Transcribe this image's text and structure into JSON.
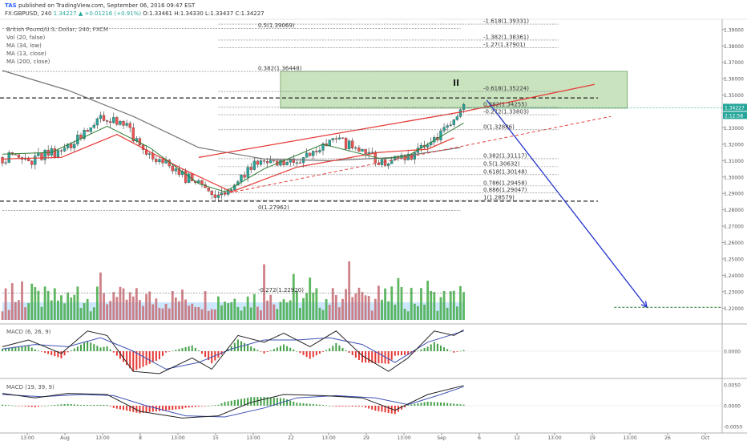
{
  "header": {
    "author": "TAS",
    "published": "published on TradingView.com, September 06, 2016 09:47 EST",
    "symbol": "FX:GBPUSD, 240",
    "last": "1.34227",
    "change": "+0.01216 (+0.91%)",
    "ohlc": "O:1.33461 H:1.34330 L:1.33437 C:1.34227"
  },
  "indicators": {
    "series_title": "British Pound/U.S. Dollar, 240, FXCM",
    "items": [
      "Vol (20, false)",
      "MA (34, low)",
      "MA (13, close)",
      "MA (200, close)"
    ],
    "macd1": "MACD (6, 26, 9)",
    "macd2": "MACD (19, 39, 9)"
  },
  "annotations": {
    "wave_label": "II",
    "price_tag": "1.34227",
    "timer_tag": "2:12:58"
  },
  "colors": {
    "up": "#26a69a",
    "down": "#ef5350",
    "ma13": "#2e7d32",
    "ma34": "#e53935",
    "ma200": "#757575",
    "arrow": "#2233cc",
    "zone": "#9ccc8a",
    "vol_up": "#4caf50",
    "vol_down": "#c9727a",
    "vol_ma": "#90caf9"
  },
  "chart_data": [
    {
      "type": "candlestick",
      "title": "British Pound/U.S. Dollar, 240, FXCM",
      "ylim": [
        1.2128,
        1.3963
      ],
      "yticks": [
        "1.39000",
        "1.38000",
        "1.37000",
        "1.36000",
        "1.35000",
        "1.33000",
        "1.32000",
        "1.31000",
        "1.30000",
        "1.29000",
        "1.28000",
        "1.27000",
        "1.26000",
        "1.25000",
        "1.24000",
        "1.23000",
        "1.22000"
      ],
      "xticks": [
        "13:00",
        "Aug",
        "13:00",
        "8",
        "13:00",
        "15",
        "13:00",
        "22",
        "13:00",
        "29",
        "13:00",
        "Sep",
        "6",
        "12",
        "13:00",
        "19",
        "13:00",
        "26",
        "Oct"
      ],
      "x_range": [
        0,
        220
      ],
      "price_path": [
        [
          0,
          1.312
        ],
        [
          8,
          1.31
        ],
        [
          20,
          1.318
        ],
        [
          30,
          1.336
        ],
        [
          38,
          1.331
        ],
        [
          43,
          1.317
        ],
        [
          52,
          1.305
        ],
        [
          60,
          1.295
        ],
        [
          66,
          1.289
        ],
        [
          72,
          1.298
        ],
        [
          78,
          1.311
        ],
        [
          84,
          1.306
        ],
        [
          92,
          1.312
        ],
        [
          100,
          1.323
        ],
        [
          108,
          1.318
        ],
        [
          116,
          1.308
        ],
        [
          124,
          1.312
        ],
        [
          132,
          1.321
        ],
        [
          137,
          1.331
        ],
        [
          141,
          1.3423
        ]
      ],
      "ma13_path": [
        [
          0,
          1.314
        ],
        [
          15,
          1.315
        ],
        [
          32,
          1.331
        ],
        [
          45,
          1.318
        ],
        [
          60,
          1.296
        ],
        [
          68,
          1.291
        ],
        [
          80,
          1.305
        ],
        [
          98,
          1.32
        ],
        [
          116,
          1.311
        ],
        [
          124,
          1.313
        ],
        [
          141,
          1.333
        ]
      ],
      "ma34_path": [
        [
          0,
          1.311
        ],
        [
          18,
          1.312
        ],
        [
          35,
          1.326
        ],
        [
          55,
          1.305
        ],
        [
          70,
          1.291
        ],
        [
          90,
          1.306
        ],
        [
          115,
          1.315
        ],
        [
          130,
          1.317
        ],
        [
          138,
          1.324
        ]
      ],
      "ma200_path": [
        [
          0,
          1.365
        ],
        [
          20,
          1.353
        ],
        [
          40,
          1.337
        ],
        [
          60,
          1.318
        ],
        [
          80,
          1.311
        ],
        [
          100,
          1.31
        ],
        [
          120,
          1.312
        ],
        [
          140,
          1.318
        ]
      ],
      "channel_upper": [
        [
          60,
          1.312
        ],
        [
          141,
          1.34
        ],
        [
          181,
          1.3565
        ]
      ],
      "channel_lower": [
        [
          66,
          1.289
        ],
        [
          186,
          1.337
        ]
      ],
      "zone": {
        "x": [
          85,
          191
        ],
        "y": [
          1.342,
          1.3645
        ]
      },
      "levels_dashed": [
        1.3483,
        1.2853
      ],
      "arrow": {
        "from": [
          148,
          1.347
        ],
        "to": [
          197,
          1.2205
        ]
      },
      "target_line": {
        "x": [
          187,
          220
        ],
        "y": 1.2205
      },
      "fib_levels": [
        {
          "label": "-1.618(1.39331)",
          "y": 1.39331,
          "x": [
            66,
            170
          ]
        },
        {
          "label": "0.5(1.39069)",
          "y": 1.39069,
          "x": [
            0,
            140
          ]
        },
        {
          "label": "-1.382(1.38361)",
          "y": 1.38361,
          "x": [
            66,
            170
          ]
        },
        {
          "label": "-1.27(1.37901)",
          "y": 1.37901,
          "x": [
            66,
            170
          ]
        },
        {
          "label": "0.382(1.36448)",
          "y": 1.36448,
          "x": [
            0,
            140
          ]
        },
        {
          "label": "-0.618(1.35224)",
          "y": 1.35224,
          "x": [
            66,
            170
          ]
        },
        {
          "label": "0.382(1.34255)",
          "y": 1.34255,
          "x": [
            66,
            170
          ]
        },
        {
          "label": "-0.272(1.33803)",
          "y": 1.33803,
          "x": [
            66,
            170
          ]
        },
        {
          "label": "0(1.32886)",
          "y": 1.32886,
          "x": [
            66,
            170
          ]
        },
        {
          "label": "0.382(1.31117)",
          "y": 1.31117,
          "x": [
            66,
            170
          ]
        },
        {
          "label": "0.5(1.30632)",
          "y": 1.30632,
          "x": [
            66,
            170
          ]
        },
        {
          "label": "0.618(1.30148)",
          "y": 1.30148,
          "x": [
            66,
            170
          ]
        },
        {
          "label": "0.786(1.29458)",
          "y": 1.29458,
          "x": [
            66,
            170
          ]
        },
        {
          "label": "0.886(1.29047)",
          "y": 1.29047,
          "x": [
            66,
            170
          ]
        },
        {
          "label": "1(1.28579)",
          "y": 1.28579,
          "x": [
            66,
            170
          ]
        },
        {
          "label": "0(1.27962)",
          "y": 1.27962,
          "x": [
            0,
            140
          ]
        },
        {
          "label": "-0.272(1.22920)",
          "y": 1.2292,
          "x": [
            0,
            140
          ]
        }
      ]
    },
    {
      "type": "bar",
      "title": "Vol (20, false)",
      "x_range": [
        0,
        141
      ],
      "spikes": [
        [
          80,
          0.78
        ],
        [
          106,
          0.82
        ],
        [
          130,
          0.55
        ],
        [
          125,
          0.45
        ]
      ]
    },
    {
      "type": "line",
      "title": "MACD (6, 26, 9)",
      "yticks": [
        "0.0000"
      ],
      "macd_path": [
        [
          0,
          0.2
        ],
        [
          8,
          0.5
        ],
        [
          18,
          -0.1
        ],
        [
          26,
          0.9
        ],
        [
          32,
          0.7
        ],
        [
          40,
          -0.9
        ],
        [
          48,
          -1.0
        ],
        [
          58,
          -0.3
        ],
        [
          64,
          -0.8
        ],
        [
          72,
          0.7
        ],
        [
          80,
          0.4
        ],
        [
          86,
          0.8
        ],
        [
          94,
          0.2
        ],
        [
          102,
          0.9
        ],
        [
          110,
          -0.2
        ],
        [
          118,
          -0.9
        ],
        [
          124,
          -0.3
        ],
        [
          132,
          0.9
        ],
        [
          138,
          0.7
        ],
        [
          141,
          0.95
        ]
      ],
      "signal_path": [
        [
          0,
          0.1
        ],
        [
          10,
          0.3
        ],
        [
          20,
          0.2
        ],
        [
          30,
          0.6
        ],
        [
          40,
          0.0
        ],
        [
          50,
          -0.8
        ],
        [
          60,
          -0.5
        ],
        [
          70,
          0.1
        ],
        [
          80,
          0.5
        ],
        [
          90,
          0.5
        ],
        [
          100,
          0.6
        ],
        [
          110,
          0.3
        ],
        [
          120,
          -0.5
        ],
        [
          130,
          0.4
        ],
        [
          141,
          0.9
        ]
      ]
    },
    {
      "type": "line",
      "title": "MACD (19, 39, 9)",
      "yticks": [
        "0.0050",
        "0.0000",
        "-0.0050"
      ],
      "macd_path": [
        [
          0,
          0.55
        ],
        [
          10,
          0.35
        ],
        [
          20,
          0.55
        ],
        [
          32,
          0.5
        ],
        [
          42,
          -0.25
        ],
        [
          55,
          -0.55
        ],
        [
          66,
          -0.45
        ],
        [
          76,
          0.15
        ],
        [
          86,
          0.5
        ],
        [
          98,
          0.45
        ],
        [
          110,
          0.35
        ],
        [
          120,
          -0.2
        ],
        [
          130,
          0.5
        ],
        [
          141,
          0.9
        ]
      ],
      "signal_path": [
        [
          0,
          0.5
        ],
        [
          12,
          0.4
        ],
        [
          24,
          0.5
        ],
        [
          34,
          0.45
        ],
        [
          44,
          0.0
        ],
        [
          56,
          -0.45
        ],
        [
          68,
          -0.5
        ],
        [
          80,
          -0.1
        ],
        [
          90,
          0.35
        ],
        [
          102,
          0.45
        ],
        [
          114,
          0.35
        ],
        [
          124,
          0.05
        ],
        [
          134,
          0.5
        ],
        [
          141,
          0.85
        ]
      ]
    }
  ]
}
